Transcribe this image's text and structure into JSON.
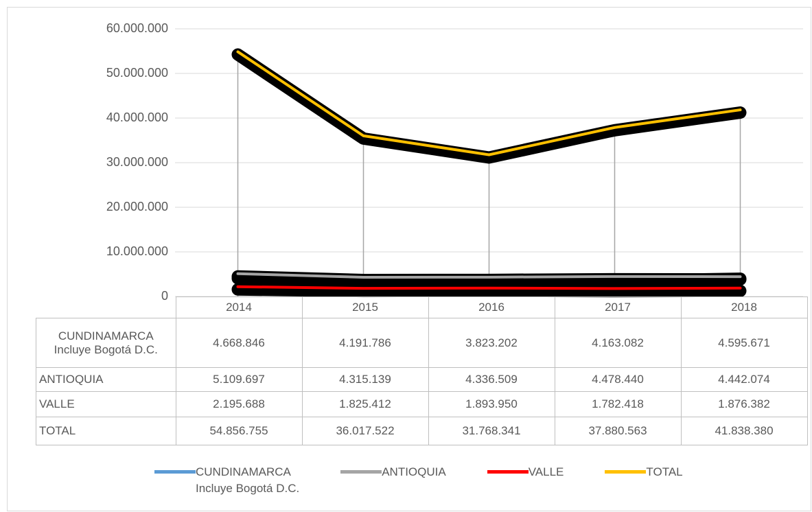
{
  "chart_data": {
    "type": "line",
    "categories": [
      "2014",
      "2015",
      "2016",
      "2017",
      "2018"
    ],
    "series": [
      {
        "name": "CUNDINAMARCA\nIncluye Bogotá D.C.",
        "color": "#5b9bd5",
        "values": [
          4668846,
          4191786,
          3823202,
          4163082,
          4595671
        ],
        "value_labels": [
          "4.668.846",
          "4.191.786",
          "3.823.202",
          "4.163.082",
          "4.595.671"
        ]
      },
      {
        "name": "ANTIOQUIA",
        "color": "#a5a5a5",
        "values": [
          5109697,
          4315139,
          4336509,
          4478440,
          4442074
        ],
        "value_labels": [
          "5.109.697",
          "4.315.139",
          "4.336.509",
          "4.478.440",
          "4.442.074"
        ]
      },
      {
        "name": "VALLE",
        "color": "#ff0000",
        "values": [
          2195688,
          1825412,
          1893950,
          1782418,
          1876382
        ],
        "value_labels": [
          "2.195.688",
          "1.825.412",
          "1.893.950",
          "1.782.418",
          "1.876.382"
        ]
      },
      {
        "name": "TOTAL",
        "color": "#ffc000",
        "values": [
          54856755,
          36017522,
          31768341,
          37880563,
          41838380
        ],
        "value_labels": [
          "54.856.755",
          "36.017.522",
          "31.768.341",
          "37.880.563",
          "41.838.380"
        ]
      }
    ],
    "ylim": [
      0,
      60000000
    ],
    "yticks": [
      0,
      {
        "value": 10000000,
        "label": "10.000.000"
      },
      {
        "value": 20000000,
        "label": "20.000.000"
      },
      {
        "value": 30000000,
        "label": "30.000.000"
      },
      {
        "value": 40000000,
        "label": "40.000.000"
      },
      {
        "value": 50000000,
        "label": "50.000.000"
      },
      {
        "value": 60000000,
        "label": "60.000.000"
      }
    ],
    "grid": true
  }
}
